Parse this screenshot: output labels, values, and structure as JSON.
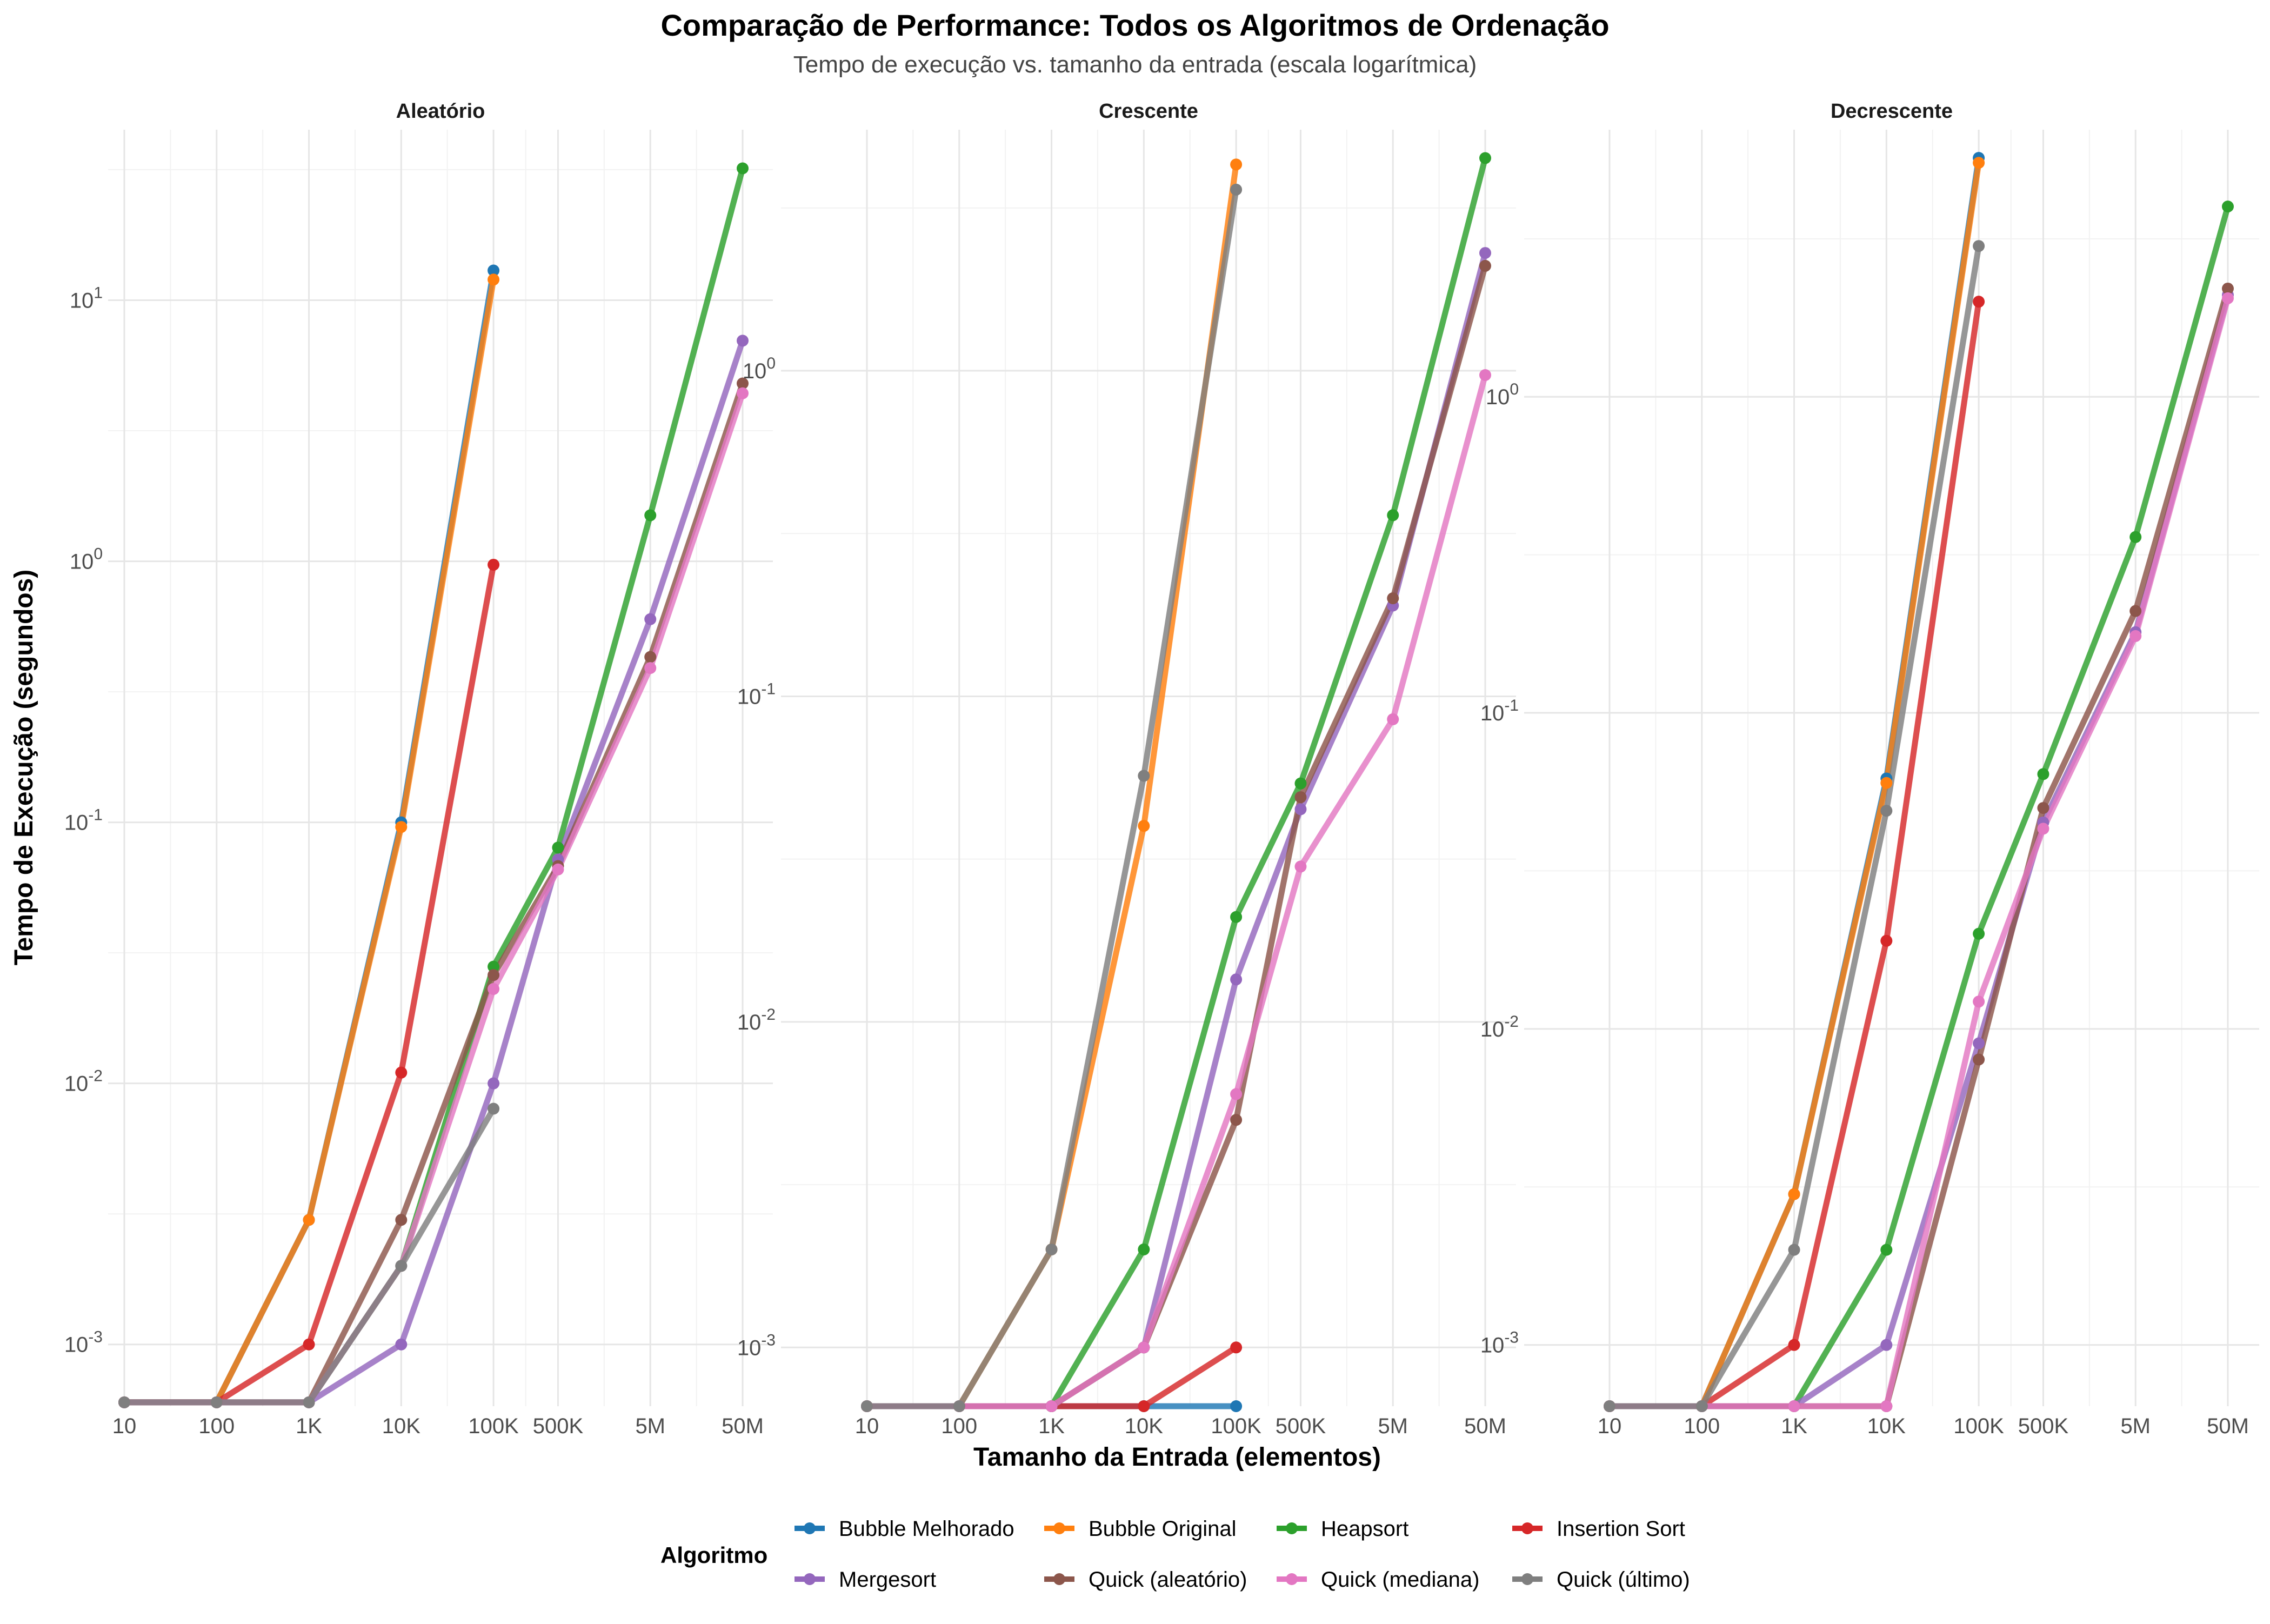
{
  "chart_data": {
    "type": "line",
    "title": "Comparação de Performance: Todos os Algoritmos de Ordenação",
    "subtitle": "Tempo de execução vs. tamanho da entrada (escala logarítmica)",
    "xlabel": "Tamanho da Entrada (elementos)",
    "ylabel": "Tempo de Execução (segundos)",
    "x_scale": "log",
    "y_scale": "log",
    "grid": true,
    "legend_title": "Algoritmo",
    "legend_position": "bottom",
    "x_ticks": [
      10,
      100,
      1000,
      10000,
      100000,
      500000,
      5000000,
      50000000
    ],
    "x_tick_labels": [
      "10",
      "100",
      "1K",
      "10K",
      "100K",
      "500K",
      "5M",
      "50M"
    ],
    "series_colors": {
      "Bubble Melhorado": "#1f77b4",
      "Bubble Original": "#ff7f0e",
      "Heapsort": "#2ca02c",
      "Insertion Sort": "#d62728",
      "Mergesort": "#9467bd",
      "Quick (aleatório)": "#8c564b",
      "Quick (mediana)": "#e377c2",
      "Quick (último)": "#7f7f7f"
    },
    "legend_order": [
      "Bubble Melhorado",
      "Bubble Original",
      "Heapsort",
      "Insertion Sort",
      "Mergesort",
      "Quick (aleatório)",
      "Quick (mediana)",
      "Quick (último)"
    ],
    "panels": [
      {
        "name": "Aleatório",
        "y_ticks": [
          0.001,
          0.01,
          0.1,
          1,
          10
        ],
        "y_tick_labels": [
          "10^-3",
          "10^-2",
          "10^-1",
          "10^0",
          "10^1"
        ],
        "series": [
          {
            "name": "Bubble Melhorado",
            "x": [
              10,
              100,
              1000,
              10000,
              100000
            ],
            "y": [
              0.0006,
              0.0006,
              0.003,
              0.1,
              13
            ]
          },
          {
            "name": "Bubble Original",
            "x": [
              10,
              100,
              1000,
              10000,
              100000
            ],
            "y": [
              0.0006,
              0.0006,
              0.003,
              0.096,
              12
            ]
          },
          {
            "name": "Heapsort",
            "x": [
              10,
              100,
              1000,
              10000,
              100000,
              500000,
              5000000,
              50000000
            ],
            "y": [
              0.0006,
              0.0006,
              0.0006,
              0.002,
              0.028,
              0.08,
              1.5,
              32
            ]
          },
          {
            "name": "Insertion Sort",
            "x": [
              10,
              100,
              1000,
              10000,
              100000
            ],
            "y": [
              0.0006,
              0.0006,
              0.001,
              0.011,
              0.97
            ]
          },
          {
            "name": "Mergesort",
            "x": [
              10,
              100,
              1000,
              10000,
              100000,
              500000,
              5000000,
              50000000
            ],
            "y": [
              0.0006,
              0.0006,
              0.0006,
              0.001,
              0.01,
              0.072,
              0.6,
              7
            ]
          },
          {
            "name": "Quick (aleatório)",
            "x": [
              10,
              100,
              1000,
              10000,
              100000,
              500000,
              5000000,
              50000000
            ],
            "y": [
              0.0006,
              0.0006,
              0.0006,
              0.003,
              0.026,
              0.068,
              0.43,
              4.8
            ]
          },
          {
            "name": "Quick (mediana)",
            "x": [
              10,
              100,
              1000,
              10000,
              100000,
              500000,
              5000000,
              50000000
            ],
            "y": [
              0.0006,
              0.0006,
              0.0006,
              0.002,
              0.023,
              0.066,
              0.39,
              4.4
            ]
          },
          {
            "name": "Quick (último)",
            "x": [
              10,
              100,
              1000,
              10000,
              100000
            ],
            "y": [
              0.0006,
              0.0006,
              0.0006,
              0.002,
              0.008
            ]
          }
        ]
      },
      {
        "name": "Crescente",
        "y_ticks": [
          0.001,
          0.01,
          0.1,
          1
        ],
        "y_tick_labels": [
          "10^-3",
          "10^-2",
          "10^-1",
          "10^0"
        ],
        "series": [
          {
            "name": "Bubble Melhorado",
            "x": [
              10,
              100,
              1000,
              10000,
              100000
            ],
            "y": [
              0.00066,
              0.00066,
              0.00066,
              0.00066,
              0.00066
            ]
          },
          {
            "name": "Bubble Original",
            "x": [
              10,
              100,
              1000,
              10000,
              100000
            ],
            "y": [
              0.00066,
              0.00066,
              0.002,
              0.04,
              4.3
            ]
          },
          {
            "name": "Heapsort",
            "x": [
              10,
              100,
              1000,
              10000,
              100000,
              500000,
              5000000,
              50000000
            ],
            "y": [
              0.00066,
              0.00066,
              0.00066,
              0.002,
              0.021,
              0.054,
              0.36,
              4.5
            ]
          },
          {
            "name": "Insertion Sort",
            "x": [
              10,
              100,
              1000,
              10000,
              100000
            ],
            "y": [
              0.00066,
              0.00066,
              0.00066,
              0.00066,
              0.001
            ]
          },
          {
            "name": "Mergesort",
            "x": [
              10,
              100,
              1000,
              10000,
              100000,
              500000,
              5000000,
              50000000
            ],
            "y": [
              0.00066,
              0.00066,
              0.00066,
              0.001,
              0.0135,
              0.045,
              0.19,
              2.3
            ]
          },
          {
            "name": "Quick (aleatório)",
            "x": [
              10,
              100,
              1000,
              10000,
              100000,
              500000,
              5000000,
              50000000
            ],
            "y": [
              0.00066,
              0.00066,
              0.00066,
              0.001,
              0.005,
              0.049,
              0.2,
              2.1
            ]
          },
          {
            "name": "Quick (mediana)",
            "x": [
              10,
              100,
              1000,
              10000,
              100000,
              500000,
              5000000,
              50000000
            ],
            "y": [
              0.00066,
              0.00066,
              0.00066,
              0.001,
              0.006,
              0.03,
              0.085,
              0.97
            ]
          },
          {
            "name": "Quick (último)",
            "x": [
              10,
              100,
              1000,
              10000,
              100000
            ],
            "y": [
              0.00066,
              0.00066,
              0.002,
              0.057,
              3.6
            ]
          }
        ]
      },
      {
        "name": "Decrescente",
        "y_ticks": [
          0.001,
          0.01,
          0.1,
          1
        ],
        "y_tick_labels": [
          "10^-3",
          "10^-2",
          "10^-1",
          "10^0"
        ],
        "series": [
          {
            "name": "Bubble Melhorado",
            "x": [
              10,
              100,
              1000,
              10000,
              100000
            ],
            "y": [
              0.00064,
              0.00064,
              0.003,
              0.062,
              5.7
            ]
          },
          {
            "name": "Bubble Original",
            "x": [
              10,
              100,
              1000,
              10000,
              100000
            ],
            "y": [
              0.00064,
              0.00064,
              0.003,
              0.06,
              5.5
            ]
          },
          {
            "name": "Heapsort",
            "x": [
              10,
              100,
              1000,
              10000,
              100000,
              500000,
              5000000,
              50000000
            ],
            "y": [
              0.00064,
              0.00064,
              0.00064,
              0.002,
              0.02,
              0.064,
              0.36,
              4.0
            ]
          },
          {
            "name": "Insertion Sort",
            "x": [
              10,
              100,
              1000,
              10000,
              100000
            ],
            "y": [
              0.00064,
              0.00064,
              0.001,
              0.019,
              2.0
            ]
          },
          {
            "name": "Mergesort",
            "x": [
              10,
              100,
              1000,
              10000,
              100000,
              500000,
              5000000,
              50000000
            ],
            "y": [
              0.00064,
              0.00064,
              0.00064,
              0.001,
              0.009,
              0.045,
              0.18,
              2.1
            ]
          },
          {
            "name": "Quick (aleatório)",
            "x": [
              10,
              100,
              1000,
              10000,
              100000,
              500000,
              5000000,
              50000000
            ],
            "y": [
              0.00064,
              0.00064,
              0.00064,
              0.00064,
              0.008,
              0.05,
              0.21,
              2.2
            ]
          },
          {
            "name": "Quick (mediana)",
            "x": [
              10,
              100,
              1000,
              10000,
              100000,
              500000,
              5000000,
              50000000
            ],
            "y": [
              0.00064,
              0.00064,
              0.00064,
              0.00064,
              0.0122,
              0.043,
              0.175,
              2.05
            ]
          },
          {
            "name": "Quick (último)",
            "x": [
              10,
              100,
              1000,
              10000,
              100000
            ],
            "y": [
              0.00064,
              0.00064,
              0.002,
              0.049,
              3.0
            ]
          }
        ]
      }
    ]
  }
}
